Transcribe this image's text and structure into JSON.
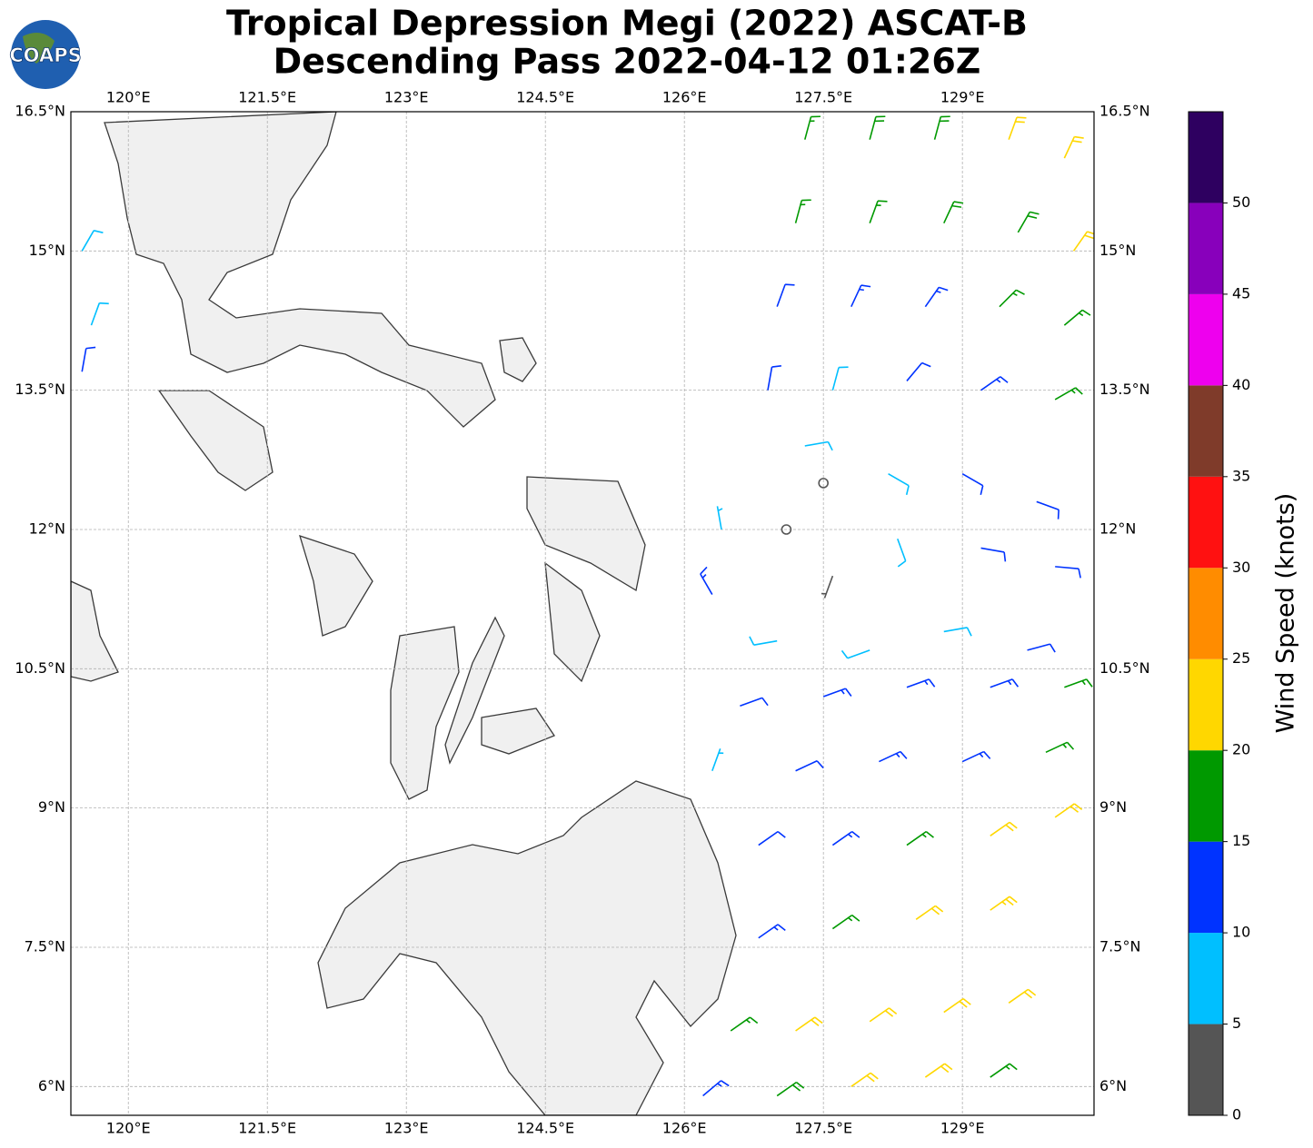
{
  "header": {
    "title_lines": [
      "Tropical Depression Megi (2022) ASCAT-B",
      "Descending Pass 2022-04-12 01:26Z"
    ],
    "logo": "COAPS"
  },
  "map": {
    "xlim": [
      119.38,
      130.42
    ],
    "ylim": [
      5.69,
      16.5
    ],
    "xticks": [
      {
        "value": 120,
        "label": "120°E"
      },
      {
        "value": 121.5,
        "label": "121.5°E"
      },
      {
        "value": 123,
        "label": "123°E"
      },
      {
        "value": 124.5,
        "label": "124.5°E"
      },
      {
        "value": 126,
        "label": "126°E"
      },
      {
        "value": 127.5,
        "label": "127.5°E"
      },
      {
        "value": 129,
        "label": "129°E"
      }
    ],
    "yticks": [
      {
        "value": 6,
        "label": "6°N"
      },
      {
        "value": 7.5,
        "label": "7.5°N"
      },
      {
        "value": 9,
        "label": "9°N"
      },
      {
        "value": 10.5,
        "label": "10.5°N"
      },
      {
        "value": 12,
        "label": "12°N"
      },
      {
        "value": 13.5,
        "label": "13.5°N"
      },
      {
        "value": 15,
        "label": "15°N"
      },
      {
        "value": 16.5,
        "label": "16.5°N"
      }
    ],
    "grid": true
  },
  "wind": {
    "barbs": [
      [
        127.3,
        16.2,
        17,
        15
      ],
      [
        128.0,
        16.2,
        18,
        15
      ],
      [
        128.7,
        16.2,
        19,
        15
      ],
      [
        129.5,
        16.2,
        20,
        20
      ],
      [
        130.1,
        16.0,
        22,
        25
      ],
      [
        127.2,
        15.3,
        16,
        15
      ],
      [
        128.0,
        15.3,
        17,
        20
      ],
      [
        128.8,
        15.3,
        18,
        25
      ],
      [
        129.6,
        15.2,
        19,
        30
      ],
      [
        130.2,
        15.0,
        21,
        35
      ],
      [
        127.0,
        14.4,
        12,
        20
      ],
      [
        127.8,
        14.4,
        13,
        25
      ],
      [
        128.6,
        14.4,
        14,
        35
      ],
      [
        129.4,
        14.4,
        16,
        45
      ],
      [
        130.1,
        14.2,
        17,
        50
      ],
      [
        126.9,
        13.5,
        11,
        10
      ],
      [
        127.6,
        13.5,
        8,
        15
      ],
      [
        128.4,
        13.6,
        12,
        40
      ],
      [
        129.2,
        13.5,
        13,
        55
      ],
      [
        130.0,
        13.4,
        16,
        60
      ],
      [
        127.3,
        12.9,
        8,
        80
      ],
      [
        128.2,
        12.6,
        9,
        120
      ],
      [
        129.0,
        12.6,
        12,
        120
      ],
      [
        129.8,
        12.3,
        12,
        110
      ],
      [
        128.3,
        11.9,
        8,
        160
      ],
      [
        129.2,
        11.8,
        11,
        100
      ],
      [
        130.0,
        11.6,
        12,
        95
      ],
      [
        127.1,
        12.0,
        2,
        0
      ],
      [
        127.6,
        11.5,
        4,
        200
      ],
      [
        127.5,
        12.5,
        2,
        300
      ],
      [
        126.4,
        12.0,
        7,
        350
      ],
      [
        126.3,
        11.3,
        13,
        330
      ],
      [
        127.0,
        10.8,
        9,
        260
      ],
      [
        128.0,
        10.7,
        8,
        250
      ],
      [
        128.8,
        10.9,
        9,
        80
      ],
      [
        129.7,
        10.7,
        12,
        75
      ],
      [
        126.6,
        10.1,
        12,
        70
      ],
      [
        127.5,
        10.2,
        13,
        70
      ],
      [
        128.4,
        10.3,
        13,
        70
      ],
      [
        129.3,
        10.3,
        14,
        70
      ],
      [
        130.1,
        10.3,
        16,
        70
      ],
      [
        126.3,
        9.4,
        7,
        20
      ],
      [
        127.2,
        9.4,
        12,
        65
      ],
      [
        128.1,
        9.5,
        13,
        65
      ],
      [
        129.0,
        9.5,
        14,
        65
      ],
      [
        129.9,
        9.6,
        17,
        65
      ],
      [
        126.8,
        8.6,
        12,
        55
      ],
      [
        127.6,
        8.6,
        14,
        55
      ],
      [
        128.4,
        8.6,
        17,
        55
      ],
      [
        129.3,
        8.7,
        21,
        55
      ],
      [
        130.0,
        8.9,
        22,
        55
      ],
      [
        126.8,
        7.6,
        13,
        55
      ],
      [
        127.6,
        7.7,
        17,
        55
      ],
      [
        128.5,
        7.8,
        22,
        55
      ],
      [
        129.3,
        7.9,
        23,
        55
      ],
      [
        126.5,
        6.6,
        17,
        55
      ],
      [
        127.2,
        6.6,
        21,
        55
      ],
      [
        128.0,
        6.7,
        22,
        55
      ],
      [
        128.8,
        6.8,
        22,
        55
      ],
      [
        129.5,
        6.9,
        21,
        55
      ],
      [
        126.2,
        5.9,
        13,
        50
      ],
      [
        127.0,
        5.9,
        19,
        55
      ],
      [
        127.8,
        6.0,
        22,
        55
      ],
      [
        128.6,
        6.1,
        22,
        55
      ],
      [
        129.3,
        6.1,
        17,
        55
      ],
      [
        119.5,
        15.0,
        8,
        30
      ],
      [
        119.6,
        14.2,
        9,
        20
      ],
      [
        119.5,
        13.7,
        12,
        10
      ]
    ]
  },
  "colorbar": {
    "label": "Wind Speed (knots)",
    "bounds": [
      0,
      5,
      10,
      15,
      20,
      25,
      30,
      35,
      40,
      45,
      50,
      55
    ],
    "colors": [
      "#555555",
      "#00bfff",
      "#0033ff",
      "#009900",
      "#ffd700",
      "#ff8c00",
      "#ff1111",
      "#7f3b2a",
      "#ee00ee",
      "#8800bb",
      "#2e0060"
    ],
    "ticks": [
      0,
      5,
      10,
      15,
      20,
      25,
      30,
      35,
      40,
      45,
      50
    ]
  }
}
